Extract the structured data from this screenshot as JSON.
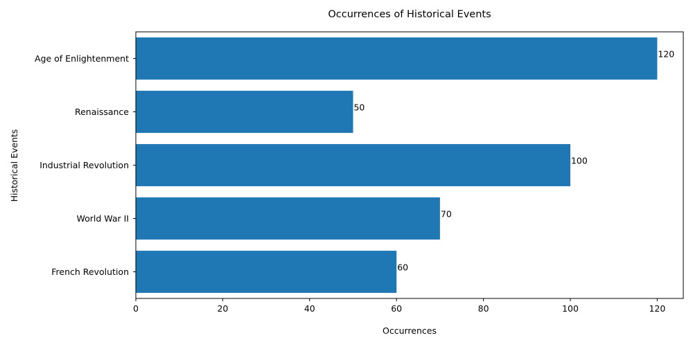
{
  "chart_data": {
    "type": "bar",
    "orientation": "horizontal",
    "title": "Occurrences of Historical Events",
    "xlabel": "Occurrences",
    "ylabel": "Historical Events",
    "categories": [
      "French Revolution",
      "World War II",
      "Industrial Revolution",
      "Renaissance",
      "Age of Enlightenment"
    ],
    "values": [
      60,
      70,
      100,
      50,
      120
    ],
    "data_labels": [
      "60",
      "70",
      "100",
      "50",
      "120"
    ],
    "xlim": [
      0,
      126
    ],
    "xticks": [
      0,
      20,
      40,
      60,
      80,
      100,
      120
    ],
    "xtick_labels": [
      "0",
      "20",
      "40",
      "60",
      "80",
      "100",
      "120"
    ],
    "grid": false,
    "legend": "none",
    "bar_color": "#1f77b4"
  }
}
